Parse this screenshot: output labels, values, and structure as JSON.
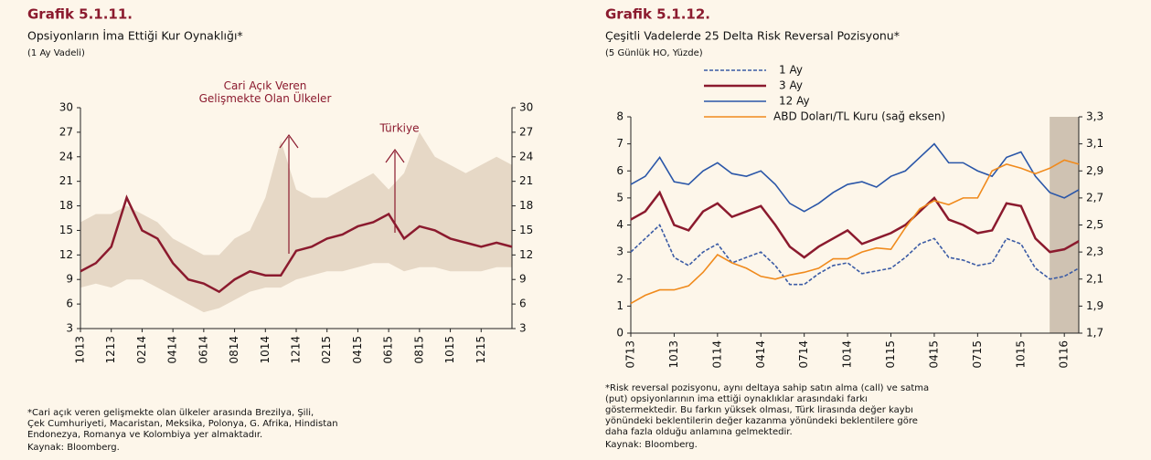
{
  "chart_data": [
    {
      "type": "line",
      "title": "Grafik 5.1.11.",
      "subtitle": "Opsiyonların İma Ettiği Kur Oynaklığı*",
      "subtitle2": "(1 Ay Vadeli)",
      "categories": [
        "1013",
        null,
        "1213",
        null,
        "0214",
        null,
        "0414",
        null,
        "0614",
        null,
        "0814",
        null,
        "1014",
        null,
        "1214",
        null,
        "0215",
        null,
        "0415",
        null,
        "0615",
        null,
        "0815",
        null,
        "1015",
        null,
        "1215",
        null,
        null
      ],
      "series": [
        {
          "name": "Türkiye",
          "color": "#8b1a2e",
          "values": [
            10,
            11,
            13,
            19,
            15,
            14,
            11,
            9,
            8.5,
            7.5,
            9,
            10,
            9.5,
            9.5,
            12.5,
            13,
            14,
            14.5,
            15.5,
            16,
            17,
            14,
            15.5,
            15,
            14,
            13.5,
            13,
            13.5,
            13
          ]
        }
      ],
      "band": {
        "name": "Cari Açık Veren Gelişmekte Olan Ülkeler",
        "color": "#e6d8c6",
        "low": [
          8,
          8.5,
          8,
          9,
          9,
          8,
          7,
          6,
          5,
          5.5,
          6.5,
          7.5,
          8,
          8,
          9,
          9.5,
          10,
          10,
          10.5,
          11,
          11,
          10,
          10.5,
          10.5,
          10,
          10,
          10,
          10.5,
          10.5
        ],
        "high": [
          16,
          17,
          17,
          18,
          17,
          16,
          14,
          13,
          12,
          12,
          14,
          15,
          19,
          26,
          20,
          19,
          19,
          20,
          21,
          22,
          20,
          22,
          27,
          24,
          23,
          22,
          23,
          24,
          23
        ]
      },
      "ylim": [
        3,
        30
      ],
      "yticks": [
        3,
        6,
        9,
        12,
        15,
        18,
        21,
        24,
        27,
        30
      ],
      "note": [
        "*Cari açık veren gelişmekte olan ülkeler arasında Brezilya, Şili,",
        "Çek Cumhuriyeti, Macaristan, Meksika, Polonya, G. Afrika, Hindistan",
        "Endonezya, Romanya ve Kolombiya yer almaktadır."
      ],
      "source": "Kaynak: Bloomberg."
    },
    {
      "type": "line",
      "title": "Grafik 5.1.12.",
      "subtitle": "Çeşitli Vadelerde 25 Delta Risk Reversal Pozisyonu*",
      "subtitle2": "(5 Günlük HO, Yüzde)",
      "categories": [
        "0713",
        null,
        null,
        "1013",
        null,
        null,
        "0114",
        null,
        null,
        "0414",
        null,
        null,
        "0714",
        null,
        null,
        "1014",
        null,
        null,
        "0115",
        null,
        null,
        "0415",
        null,
        null,
        "0715",
        null,
        null,
        "1015",
        null,
        null,
        "0116",
        null
      ],
      "series": [
        {
          "name": "1 Ay",
          "color": "#3b5ba5",
          "dash": true,
          "values": [
            3.0,
            3.5,
            4.0,
            2.8,
            2.5,
            3.0,
            3.3,
            2.6,
            2.8,
            3.0,
            2.5,
            1.8,
            1.8,
            2.2,
            2.5,
            2.6,
            2.2,
            2.3,
            2.4,
            2.8,
            3.3,
            3.5,
            2.8,
            2.7,
            2.5,
            2.6,
            3.5,
            3.3,
            2.4,
            2.0,
            2.1,
            2.4
          ]
        },
        {
          "name": "3 Ay",
          "color": "#8b1a2e",
          "values": [
            4.2,
            4.5,
            5.2,
            4.0,
            3.8,
            4.5,
            4.8,
            4.3,
            4.5,
            4.7,
            4.0,
            3.2,
            2.8,
            3.2,
            3.5,
            3.8,
            3.3,
            3.5,
            3.7,
            4.0,
            4.5,
            5.0,
            4.2,
            4.0,
            3.7,
            3.8,
            4.8,
            4.7,
            3.5,
            3.0,
            3.1,
            3.4
          ]
        },
        {
          "name": "12 Ay",
          "color": "#2a56a8",
          "values": [
            5.5,
            5.8,
            6.5,
            5.6,
            5.5,
            6.0,
            6.3,
            5.9,
            5.8,
            6.0,
            5.5,
            4.8,
            4.5,
            4.8,
            5.2,
            5.5,
            5.6,
            5.4,
            5.8,
            6.0,
            6.5,
            7.0,
            6.3,
            6.3,
            6.0,
            5.8,
            6.5,
            6.7,
            5.8,
            5.2,
            5.0,
            5.3
          ]
        },
        {
          "name": "ABD Doları/TL Kuru (sağ eksen)",
          "color": "#f08a1c",
          "axis": "y2",
          "values": [
            1.92,
            1.98,
            2.02,
            2.02,
            2.05,
            2.15,
            2.28,
            2.22,
            2.18,
            2.12,
            2.1,
            2.13,
            2.15,
            2.18,
            2.25,
            2.25,
            2.3,
            2.33,
            2.32,
            2.48,
            2.62,
            2.68,
            2.65,
            2.7,
            2.7,
            2.9,
            2.95,
            2.92,
            2.88,
            2.92,
            2.98,
            2.95
          ]
        }
      ],
      "ylim": [
        0,
        8
      ],
      "yticks": [
        0,
        1,
        2,
        3,
        4,
        5,
        6,
        7,
        8
      ],
      "y2lim": [
        1.7,
        3.3
      ],
      "y2ticks": [
        {
          "value": 1.7,
          "label": "1,7"
        },
        {
          "value": 1.9,
          "label": "1,9"
        },
        {
          "value": 2.1,
          "label": "2,1"
        },
        {
          "value": 2.3,
          "label": "2,3"
        },
        {
          "value": 2.5,
          "label": "2,5"
        },
        {
          "value": 2.7,
          "label": "2,7"
        },
        {
          "value": 2.9,
          "label": "2,9"
        },
        {
          "value": 3.1,
          "label": "3,1"
        },
        {
          "value": 3.3,
          "label": "3,3"
        }
      ],
      "note": [
        "*Risk reversal pozisyonu, aynı deltaya sahip satın alma (call) ve satma",
        "(put) opsiyonlarının ima ettiği oynaklıklar arasındaki farkı",
        "göstermektedir. Bu farkın yüksek olması, Türk lirasında değer kaybı",
        "yönündeki beklentilerin değer kazanma yönündeki beklentilere göre",
        "daha fazla olduğu anlamına gelmektedir."
      ],
      "source": "Kaynak: Bloomberg."
    }
  ]
}
